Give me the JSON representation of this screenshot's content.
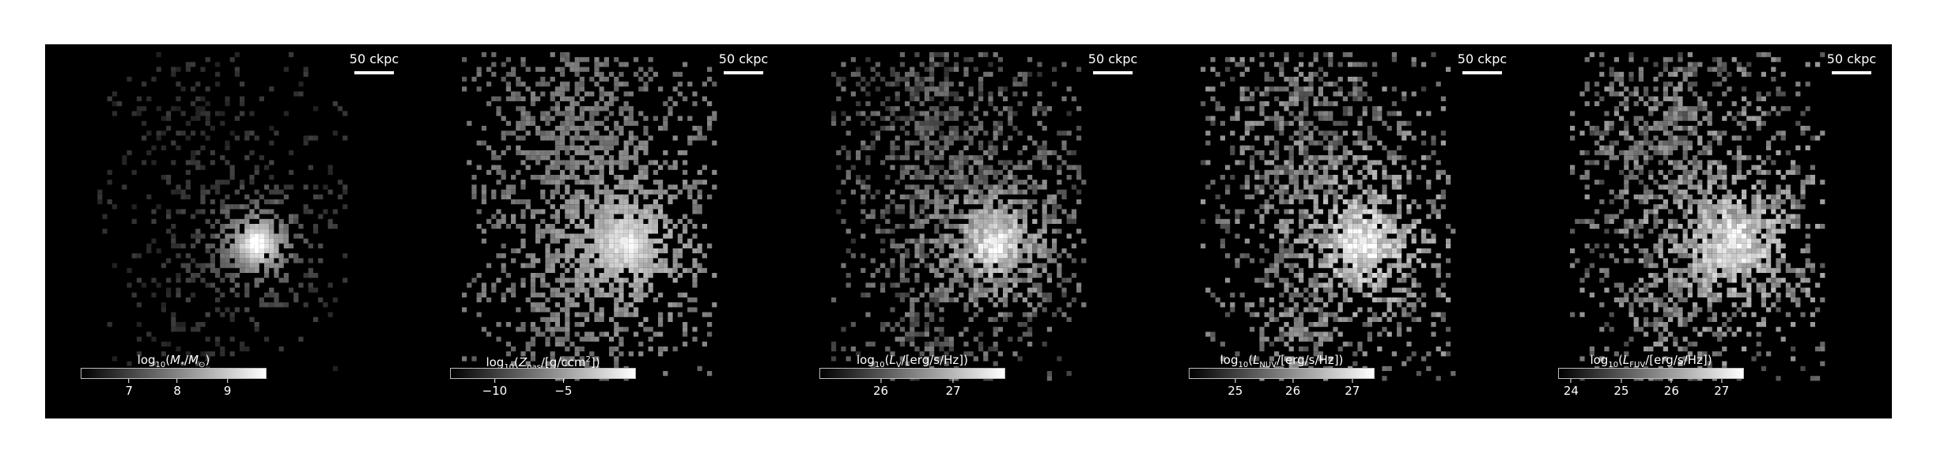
{
  "scalebar_label": "50 ckpc",
  "panels": [
    {
      "id": "mass",
      "colorbar_title_html": "log<sub>10</sub>(<i>M</i><sub>*</sub>/<i>M</i><sub>&#8857;</sub>)",
      "ticks": [
        "7",
        "8",
        "9"
      ],
      "tick_fracs": [
        0.26,
        0.52,
        0.79
      ],
      "style": "compact"
    },
    {
      "id": "metal",
      "colorbar_title_html": "log<sub>10</sub>(<i>Z</i><sub>gas</sub>/[g/ccm<sup>2</sup>])",
      "ticks": [
        "−10",
        "−5"
      ],
      "tick_fracs": [
        0.24,
        0.61
      ],
      "style": "diffuse"
    },
    {
      "id": "lv",
      "colorbar_title_html": "log<sub>10</sub>(<i>L</i><sub>V</sub>/[erg/s/Hz])",
      "ticks": [
        "26",
        "27"
      ],
      "tick_fracs": [
        0.33,
        0.72
      ],
      "style": "mid"
    },
    {
      "id": "lnuv",
      "colorbar_title_html": "log<sub>10</sub>(<i>L</i><sub>NUV</sub>/[erg/s/Hz])",
      "ticks": [
        "25",
        "26",
        "27"
      ],
      "tick_fracs": [
        0.25,
        0.56,
        0.88
      ],
      "style": "bright"
    },
    {
      "id": "lfuv",
      "colorbar_title_html": "log<sub>10</sub>(<i>L</i><sub>FUV</sub>/[erg/s/Hz])",
      "ticks": [
        "24",
        "25",
        "26",
        "27"
      ],
      "tick_fracs": [
        0.07,
        0.34,
        0.61,
        0.88
      ],
      "style": "bright"
    }
  ]
}
